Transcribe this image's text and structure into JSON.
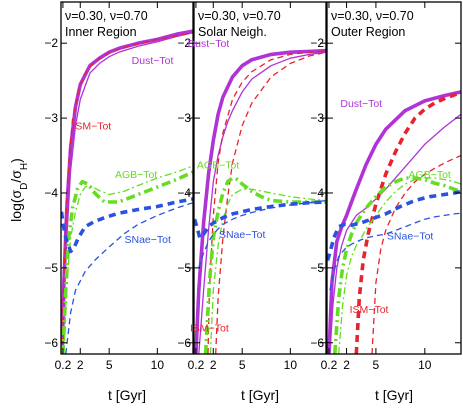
{
  "ylabel": "log(σD/σH)",
  "ylabel_parts": {
    "main": "log(σ",
    "sub1": "D",
    "mid": "/σ",
    "sub2": "H",
    "close": ")"
  },
  "xlabel": "t [Gyr]",
  "colors": {
    "dust": "#b033d6",
    "ism": "#e8232d",
    "agb": "#66dd22",
    "snae": "#2a52e0"
  },
  "chart_data": [
    {
      "type": "line",
      "title": "ν=0.30, ν=0.70",
      "subtitle": "Inner Region",
      "xlabel": "t [Gyr]",
      "ylabel": "log(σD/σH)",
      "xlim": [
        0,
        13.7
      ],
      "ylim": [
        -6.15,
        -1.45
      ],
      "xticks": [
        0.2,
        2,
        5,
        10
      ],
      "yticks": [
        -2,
        -3,
        -4,
        -5,
        -6
      ],
      "labels": [
        {
          "text": "Dust−Tot",
          "x": 9.5,
          "y": -2.28,
          "series": "dust"
        },
        {
          "text": "ISM−Tot",
          "x": 3.2,
          "y": -3.15,
          "series": "ism"
        },
        {
          "text": "AGB−Tot",
          "x": 7.8,
          "y": -3.8,
          "series": "agb"
        },
        {
          "text": "SNae−Tot",
          "x": 9.0,
          "y": -4.67,
          "series": "snae"
        }
      ],
      "series": [
        {
          "key": "dust",
          "style": "solid-thick",
          "x": [
            0.12,
            0.3,
            0.6,
            1.0,
            1.5,
            2.0,
            3.0,
            4.0,
            5.0,
            6.0,
            8.0,
            10.0,
            12.0,
            13.7
          ],
          "y": [
            -6.15,
            -5.2,
            -4.2,
            -3.4,
            -2.85,
            -2.55,
            -2.3,
            -2.2,
            -2.12,
            -2.07,
            -2.0,
            -1.95,
            -1.88,
            -1.84
          ]
        },
        {
          "key": "dust",
          "style": "solid-thin",
          "x": [
            0.12,
            0.3,
            0.6,
            1.0,
            1.5,
            2.0,
            3.0,
            4.0,
            5.0,
            6.0,
            8.0,
            10.0,
            12.0,
            13.7
          ],
          "y": [
            -6.15,
            -5.4,
            -4.6,
            -3.7,
            -3.1,
            -2.75,
            -2.4,
            -2.27,
            -2.18,
            -2.12,
            -2.04,
            -1.98,
            -1.91,
            -1.86
          ]
        },
        {
          "key": "ism",
          "style": "dashed-thin",
          "x": [
            0.1,
            0.25,
            0.5,
            0.8,
            1.2,
            1.8,
            2.5,
            3.5,
            5.0,
            7.0,
            10.0,
            13.7
          ],
          "y": [
            -6.15,
            -5.3,
            -4.4,
            -3.6,
            -3.0,
            -2.65,
            -2.4,
            -2.25,
            -2.13,
            -2.04,
            -1.95,
            -1.86
          ]
        },
        {
          "key": "agb",
          "style": "dashdot-thick",
          "x": [
            0.2,
            0.5,
            0.8,
            1.2,
            1.7,
            2.2,
            2.8,
            3.5,
            4.5,
            6.0,
            8.0,
            10.0,
            12.0,
            13.7
          ],
          "y": [
            -6.15,
            -5.3,
            -4.6,
            -4.2,
            -3.95,
            -3.85,
            -3.88,
            -4.0,
            -4.12,
            -4.12,
            -4.02,
            -3.92,
            -3.82,
            -3.72
          ]
        },
        {
          "key": "agb",
          "style": "dashdot-thin",
          "x": [
            0.3,
            0.6,
            1.0,
            1.5,
            2.0,
            2.5,
            3.0,
            4.0,
            5.0,
            6.5,
            8.0,
            10.0,
            12.0,
            13.7
          ],
          "y": [
            -6.15,
            -5.2,
            -4.6,
            -4.25,
            -4.02,
            -3.92,
            -3.9,
            -3.97,
            -4.02,
            -3.98,
            -3.9,
            -3.8,
            -3.72,
            -3.64
          ]
        },
        {
          "key": "snae",
          "style": "dashed-thick",
          "x": [
            0.05,
            0.2,
            0.5,
            1.0,
            1.3,
            1.8,
            2.5,
            3.5,
            4.5,
            6.0,
            8.0,
            10.0,
            12.0,
            13.7
          ],
          "y": [
            -4.25,
            -4.4,
            -4.6,
            -4.78,
            -4.75,
            -4.6,
            -4.45,
            -4.38,
            -4.33,
            -4.27,
            -4.22,
            -4.18,
            -4.12,
            -4.08
          ]
        },
        {
          "key": "snae",
          "style": "dashed-thin",
          "x": [
            0.5,
            1.0,
            1.5,
            2.5,
            3.5,
            5.0,
            6.5,
            8.0,
            10.0,
            12.0,
            13.7
          ],
          "y": [
            -6.15,
            -5.6,
            -5.3,
            -5.05,
            -4.9,
            -4.72,
            -4.55,
            -4.42,
            -4.3,
            -4.2,
            -4.13
          ]
        }
      ]
    },
    {
      "type": "line",
      "title": "ν=0.30, ν=0.70",
      "subtitle": "Solar Neigh.",
      "xlabel": "t [Gyr]",
      "ylabel": "",
      "xlim": [
        0,
        13.7
      ],
      "ylim": [
        -6.15,
        -1.45
      ],
      "xticks": [
        0.2,
        2,
        5,
        10
      ],
      "yticks": [
        -2,
        -3,
        -4,
        -5,
        -6
      ],
      "labels": [
        {
          "text": "Dust−Tot",
          "x": 1.5,
          "y": -2.05,
          "series": "dust"
        },
        {
          "text": "AGB−Tot",
          "x": 2.5,
          "y": -3.67,
          "series": "agb"
        },
        {
          "text": "SNae−Tot",
          "x": 5.0,
          "y": -4.6,
          "series": "snae"
        },
        {
          "text": "ISM−Tot",
          "x": 1.6,
          "y": -5.85,
          "series": "ism"
        }
      ],
      "series": [
        {
          "key": "dust",
          "style": "solid-thick",
          "x": [
            0.2,
            0.5,
            1.0,
            1.5,
            2.0,
            2.5,
            3.0,
            4.0,
            5.0,
            6.0,
            8.0,
            10.0,
            12.0,
            13.7
          ],
          "y": [
            -6.15,
            -5.3,
            -4.4,
            -3.75,
            -3.3,
            -2.95,
            -2.72,
            -2.45,
            -2.3,
            -2.22,
            -2.15,
            -2.12,
            -2.11,
            -2.1
          ]
        },
        {
          "key": "dust",
          "style": "solid-thin",
          "x": [
            0.5,
            1.0,
            1.5,
            2.0,
            2.5,
            3.0,
            3.5,
            4.0,
            5.0,
            6.0,
            8.0,
            10.0,
            12.0,
            13.7
          ],
          "y": [
            -6.15,
            -5.3,
            -4.5,
            -3.85,
            -3.5,
            -3.25,
            -3.05,
            -2.9,
            -2.65,
            -2.48,
            -2.3,
            -2.2,
            -2.15,
            -2.12
          ]
        },
        {
          "key": "ism",
          "style": "dashed-thin",
          "x": [
            1.45,
            1.6,
            2.0,
            2.5,
            3.0,
            4.0,
            5.0,
            6.0,
            8.0,
            10.0,
            12.0,
            13.7
          ],
          "y": [
            -6.15,
            -5.3,
            -4.3,
            -3.6,
            -3.2,
            -2.75,
            -2.52,
            -2.38,
            -2.22,
            -2.15,
            -2.12,
            -2.1
          ]
        },
        {
          "key": "ism",
          "style": "dashed-thin",
          "x": [
            2.25,
            2.5,
            3.0,
            3.5,
            4.0,
            5.0,
            6.0,
            8.0,
            10.0,
            12.0,
            13.7
          ],
          "y": [
            -6.15,
            -5.4,
            -4.6,
            -4.05,
            -3.6,
            -3.1,
            -2.8,
            -2.45,
            -2.27,
            -2.17,
            -2.12
          ]
        },
        {
          "key": "agb",
          "style": "dashdot-thick",
          "x": [
            1.2,
            1.6,
            2.0,
            2.5,
            3.0,
            3.5,
            4.0,
            4.5,
            5.0,
            6.0,
            7.0,
            8.0,
            10.0,
            12.0,
            13.7
          ],
          "y": [
            -6.15,
            -5.2,
            -4.6,
            -4.25,
            -4.0,
            -3.85,
            -3.8,
            -3.82,
            -3.88,
            -3.98,
            -4.05,
            -4.1,
            -4.12,
            -4.12,
            -4.12
          ]
        },
        {
          "key": "agb",
          "style": "dashdot-thin",
          "x": [
            1.7,
            2.0,
            2.5,
            3.0,
            3.5,
            4.0,
            5.0,
            6.0,
            8.0,
            10.0,
            12.0,
            13.7
          ],
          "y": [
            -6.15,
            -5.3,
            -4.7,
            -4.35,
            -4.15,
            -4.02,
            -3.95,
            -3.95,
            -4.0,
            -4.05,
            -4.08,
            -4.1
          ]
        },
        {
          "key": "snae",
          "style": "dashed-thick",
          "x": [
            0.05,
            0.3,
            0.6,
            1.0,
            1.5,
            2.0,
            2.5,
            3.0,
            4.0,
            5.0,
            6.0,
            8.0,
            10.0,
            12.0,
            13.7
          ],
          "y": [
            -4.35,
            -4.45,
            -4.6,
            -4.55,
            -4.45,
            -4.4,
            -4.37,
            -4.33,
            -4.28,
            -4.25,
            -4.22,
            -4.18,
            -4.15,
            -4.13,
            -4.12
          ]
        },
        {
          "key": "snae",
          "style": "dashed-thin",
          "x": [
            0.5,
            1.0,
            1.5,
            2.0,
            2.5,
            3.0,
            4.0,
            5.0,
            6.0,
            8.0,
            10.0,
            12.0,
            13.7
          ],
          "y": [
            -5.0,
            -4.8,
            -4.65,
            -4.55,
            -4.48,
            -4.42,
            -4.35,
            -4.3,
            -4.26,
            -4.2,
            -4.16,
            -4.13,
            -4.1
          ]
        }
      ]
    },
    {
      "type": "line",
      "title": "ν=0.30, ν=0.70",
      "subtitle": "Outer Region",
      "xlabel": "t [Gyr]",
      "ylabel": "",
      "xlim": [
        0,
        13.7
      ],
      "ylim": [
        -6.15,
        -1.45
      ],
      "xticks": [
        0.2,
        2,
        5,
        10
      ],
      "yticks": [
        -2,
        -3,
        -4,
        -5,
        -6
      ],
      "labels": [
        {
          "text": "Dust−Tot",
          "x": 3.5,
          "y": -2.85,
          "series": "dust"
        },
        {
          "text": "AGB−Tot",
          "x": 10.5,
          "y": -3.8,
          "series": "agb"
        },
        {
          "text": "SNae−Tot",
          "x": 8.5,
          "y": -4.62,
          "series": "snae"
        },
        {
          "text": "ISM−Tot",
          "x": 4.3,
          "y": -5.6,
          "series": "ism"
        }
      ],
      "series": [
        {
          "key": "dust",
          "style": "solid-thick",
          "x": [
            0.2,
            0.5,
            1.0,
            1.5,
            2.0,
            2.5,
            3.0,
            4.0,
            5.0,
            6.0,
            8.0,
            10.0,
            12.0,
            13.7
          ],
          "y": [
            -6.15,
            -5.2,
            -4.65,
            -4.45,
            -4.3,
            -4.12,
            -3.95,
            -3.62,
            -3.35,
            -3.15,
            -2.9,
            -2.77,
            -2.7,
            -2.65
          ]
        },
        {
          "key": "dust",
          "style": "solid-thin",
          "x": [
            0.3,
            0.6,
            1.0,
            1.5,
            2.0,
            3.0,
            4.0,
            5.0,
            6.0,
            8.0,
            10.0,
            12.0,
            13.7
          ],
          "y": [
            -6.15,
            -5.5,
            -5.0,
            -4.7,
            -4.5,
            -4.3,
            -4.2,
            -4.08,
            -3.95,
            -3.65,
            -3.35,
            -3.12,
            -2.95
          ]
        },
        {
          "key": "ism",
          "style": "dashed-thick",
          "x": [
            3.0,
            3.3,
            3.7,
            4.2,
            5.0,
            6.0,
            7.0,
            8.0,
            9.0,
            10.0,
            11.0,
            12.0,
            13.0,
            13.7
          ],
          "y": [
            -6.15,
            -5.4,
            -4.9,
            -4.55,
            -4.15,
            -3.75,
            -3.45,
            -3.2,
            -3.0,
            -2.88,
            -2.8,
            -2.74,
            -2.69,
            -2.66
          ]
        },
        {
          "key": "ism",
          "style": "dashed-thin",
          "x": [
            4.6,
            5.0,
            5.5,
            6.0,
            7.0,
            8.0,
            9.0,
            10.0,
            11.0,
            12.0,
            13.0,
            13.7
          ],
          "y": [
            -6.15,
            -5.2,
            -4.75,
            -4.5,
            -4.2,
            -4.0,
            -3.85,
            -3.75,
            -3.67,
            -3.6,
            -3.54,
            -3.5
          ]
        },
        {
          "key": "agb",
          "style": "dashdot-thick",
          "x": [
            0.8,
            1.2,
            1.6,
            2.0,
            2.5,
            3.0,
            4.0,
            5.0,
            6.0,
            7.0,
            8.0,
            9.0,
            10.0,
            11.0,
            12.0,
            13.0,
            13.7
          ],
          "y": [
            -6.15,
            -5.4,
            -5.0,
            -4.75,
            -4.55,
            -4.4,
            -4.2,
            -4.05,
            -3.92,
            -3.85,
            -3.8,
            -3.8,
            -3.82,
            -3.87,
            -3.9,
            -3.95,
            -3.98
          ]
        },
        {
          "key": "agb",
          "style": "dashdot-thin",
          "x": [
            1.2,
            1.6,
            2.0,
            2.5,
            3.0,
            3.5,
            4.0,
            5.0,
            6.0,
            7.0,
            8.0,
            9.0,
            10.0,
            11.0,
            12.0,
            13.0,
            13.7
          ],
          "y": [
            -6.15,
            -5.5,
            -5.1,
            -4.85,
            -4.7,
            -4.6,
            -4.48,
            -4.3,
            -4.12,
            -3.98,
            -3.88,
            -3.82,
            -3.8,
            -3.8,
            -3.82,
            -3.85,
            -3.88
          ]
        },
        {
          "key": "snae",
          "style": "dashed-thick",
          "x": [
            0.05,
            0.3,
            0.7,
            1.2,
            1.8,
            2.5,
            3.5,
            4.5,
            6.0,
            7.5,
            9.0,
            10.5,
            12.0,
            13.0,
            13.7
          ],
          "y": [
            -4.9,
            -4.8,
            -4.6,
            -4.45,
            -4.42,
            -4.43,
            -4.4,
            -4.35,
            -4.28,
            -4.18,
            -4.1,
            -4.05,
            -4.02,
            -4.0,
            -3.98
          ]
        },
        {
          "key": "snae",
          "style": "dashed-thin",
          "x": [
            0.3,
            0.7,
            1.2,
            2.0,
            3.0,
            4.0,
            5.0,
            6.0,
            7.0,
            8.0,
            9.0,
            10.0,
            11.0,
            12.0,
            13.0,
            13.7
          ],
          "y": [
            -5.3,
            -5.05,
            -4.85,
            -4.72,
            -4.65,
            -4.6,
            -4.57,
            -4.55,
            -4.5,
            -4.45,
            -4.4,
            -4.35,
            -4.32,
            -4.3,
            -4.28,
            -4.27
          ]
        }
      ]
    }
  ]
}
